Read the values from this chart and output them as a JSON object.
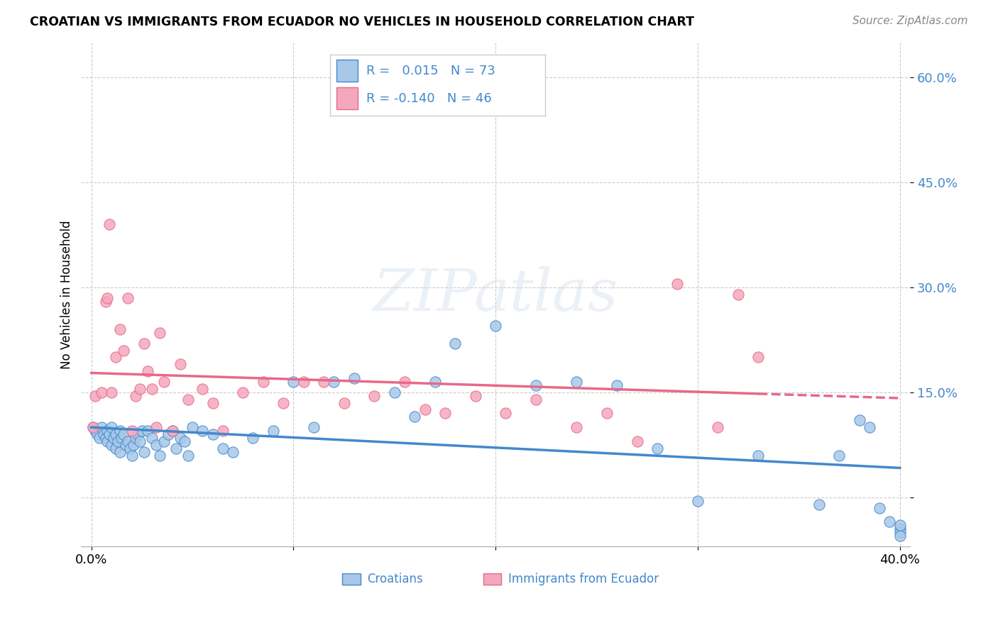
{
  "title": "CROATIAN VS IMMIGRANTS FROM ECUADOR NO VEHICLES IN HOUSEHOLD CORRELATION CHART",
  "source": "Source: ZipAtlas.com",
  "ylabel": "No Vehicles in Household",
  "xlim": [
    -0.005,
    0.405
  ],
  "ylim": [
    -0.07,
    0.65
  ],
  "ytick_vals": [
    0.0,
    0.15,
    0.3,
    0.45,
    0.6
  ],
  "ytick_labels": [
    "",
    "15.0%",
    "30.0%",
    "45.0%",
    "60.0%"
  ],
  "xtick_vals": [
    0.0,
    0.1,
    0.2,
    0.3,
    0.4
  ],
  "xtick_labels": [
    "0.0%",
    "",
    "",
    "",
    "40.0%"
  ],
  "croatian_color": "#a8c8e8",
  "ecuador_color": "#f4a8be",
  "line_croatian_color": "#4488cc",
  "line_ecuador_color": "#e86888",
  "R_croatian": 0.015,
  "N_croatian": 73,
  "R_ecuador": -0.14,
  "N_ecuador": 46,
  "watermark": "ZIPatlas",
  "croatian_x": [
    0.001,
    0.002,
    0.003,
    0.004,
    0.005,
    0.006,
    0.007,
    0.008,
    0.008,
    0.009,
    0.01,
    0.01,
    0.011,
    0.012,
    0.012,
    0.013,
    0.014,
    0.014,
    0.015,
    0.016,
    0.017,
    0.018,
    0.019,
    0.02,
    0.021,
    0.022,
    0.023,
    0.024,
    0.025,
    0.026,
    0.028,
    0.03,
    0.032,
    0.034,
    0.036,
    0.038,
    0.04,
    0.042,
    0.044,
    0.046,
    0.048,
    0.05,
    0.055,
    0.06,
    0.065,
    0.07,
    0.08,
    0.09,
    0.1,
    0.11,
    0.12,
    0.13,
    0.15,
    0.16,
    0.17,
    0.18,
    0.2,
    0.22,
    0.24,
    0.26,
    0.28,
    0.3,
    0.33,
    0.36,
    0.37,
    0.38,
    0.385,
    0.39,
    0.395,
    0.4,
    0.4,
    0.4,
    0.4
  ],
  "croatian_y": [
    0.1,
    0.095,
    0.09,
    0.085,
    0.1,
    0.09,
    0.085,
    0.095,
    0.08,
    0.09,
    0.1,
    0.075,
    0.085,
    0.09,
    0.07,
    0.08,
    0.095,
    0.065,
    0.085,
    0.09,
    0.075,
    0.08,
    0.07,
    0.06,
    0.075,
    0.085,
    0.09,
    0.08,
    0.095,
    0.065,
    0.095,
    0.085,
    0.075,
    0.06,
    0.08,
    0.09,
    0.095,
    0.07,
    0.085,
    0.08,
    0.06,
    0.1,
    0.095,
    0.09,
    0.07,
    0.065,
    0.085,
    0.095,
    0.165,
    0.1,
    0.165,
    0.17,
    0.15,
    0.115,
    0.165,
    0.22,
    0.245,
    0.16,
    0.165,
    0.16,
    0.07,
    -0.005,
    0.06,
    -0.01,
    0.06,
    0.11,
    0.1,
    -0.015,
    -0.035,
    -0.045,
    -0.05,
    -0.055,
    -0.04
  ],
  "ecuador_x": [
    0.001,
    0.002,
    0.005,
    0.007,
    0.008,
    0.009,
    0.01,
    0.012,
    0.014,
    0.016,
    0.018,
    0.02,
    0.022,
    0.024,
    0.026,
    0.028,
    0.03,
    0.032,
    0.034,
    0.036,
    0.04,
    0.044,
    0.048,
    0.055,
    0.06,
    0.065,
    0.075,
    0.085,
    0.095,
    0.105,
    0.115,
    0.125,
    0.14,
    0.155,
    0.165,
    0.175,
    0.19,
    0.205,
    0.22,
    0.24,
    0.255,
    0.27,
    0.29,
    0.31,
    0.32,
    0.33
  ],
  "ecuador_y": [
    0.1,
    0.145,
    0.15,
    0.28,
    0.285,
    0.39,
    0.15,
    0.2,
    0.24,
    0.21,
    0.285,
    0.095,
    0.145,
    0.155,
    0.22,
    0.18,
    0.155,
    0.1,
    0.235,
    0.165,
    0.095,
    0.19,
    0.14,
    0.155,
    0.135,
    0.095,
    0.15,
    0.165,
    0.135,
    0.165,
    0.165,
    0.135,
    0.145,
    0.165,
    0.125,
    0.12,
    0.145,
    0.12,
    0.14,
    0.1,
    0.12,
    0.08,
    0.305,
    0.1,
    0.29,
    0.2
  ]
}
